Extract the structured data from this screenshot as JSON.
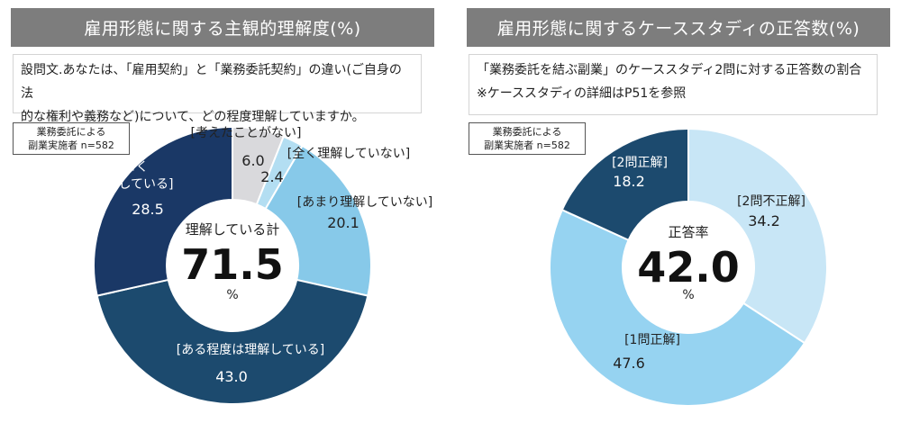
{
  "charts": [
    {
      "title": "雇用形態に関する主観的理解度(%)",
      "question_lines": [
        "設問文.あなたは、「雇用契約」と「業務委託契約」の違い(ご自身の法",
        "的な権利や義務など)について、どの程度理解していますか。"
      ],
      "sample_lines": [
        "業務委託による",
        "副業実施者 n=582"
      ],
      "center": {
        "title": "理解している計",
        "value": "71.5",
        "unit": "%"
      },
      "colors": {
        "title_bg": "#7d7d7d"
      }
    },
    {
      "title": "雇用形態に関するケーススタディの正答数(%)",
      "question_lines": [
        "「業務委託を結ぶ副業」のケーススタディ2問に対する正答数の割合",
        "※ケーススタディの詳細はP51を参照"
      ],
      "sample_lines": [
        "業務委託による",
        "副業実施者 n=582"
      ],
      "center": {
        "title": "正答率",
        "value": "42.0",
        "unit": "%"
      },
      "colors": {
        "title_bg": "#7d7d7d"
      }
    }
  ],
  "chart_data": [
    {
      "type": "pie",
      "title": "雇用形態に関する主観的理解度(%)",
      "slices": [
        {
          "label_lines": [
            "[考えたことがない]"
          ],
          "value": 6.0,
          "display": "6.0",
          "color": "#d9d9dc"
        },
        {
          "label_lines": [
            "[全く理解していない]"
          ],
          "value": 2.4,
          "display": "2.4",
          "color": "#b3def2"
        },
        {
          "label_lines": [
            "[あまり理解していない]"
          ],
          "value": 20.1,
          "display": "20.1",
          "color": "#87c9e9"
        },
        {
          "label_lines": [
            "[ある程度は理解している]"
          ],
          "value": 43.0,
          "display": "43.0",
          "color": "#1c4a6e"
        },
        {
          "label_lines": [
            "[よく",
            "理解している]"
          ],
          "value": 28.5,
          "display": "28.5",
          "color": "#1a3866"
        }
      ],
      "unit": "%"
    },
    {
      "type": "pie",
      "title": "雇用形態に関するケーススタディの正答数(%)",
      "slices": [
        {
          "label_lines": [
            "[2問不正解]"
          ],
          "value": 34.2,
          "display": "34.2",
          "color": "#c8e6f6"
        },
        {
          "label_lines": [
            "[1問正解]"
          ],
          "value": 47.6,
          "display": "47.6",
          "color": "#96d3f1"
        },
        {
          "label_lines": [
            "[2問正解]"
          ],
          "value": 18.2,
          "display": "18.2",
          "color": "#1c4a6e"
        }
      ],
      "unit": "%"
    }
  ]
}
